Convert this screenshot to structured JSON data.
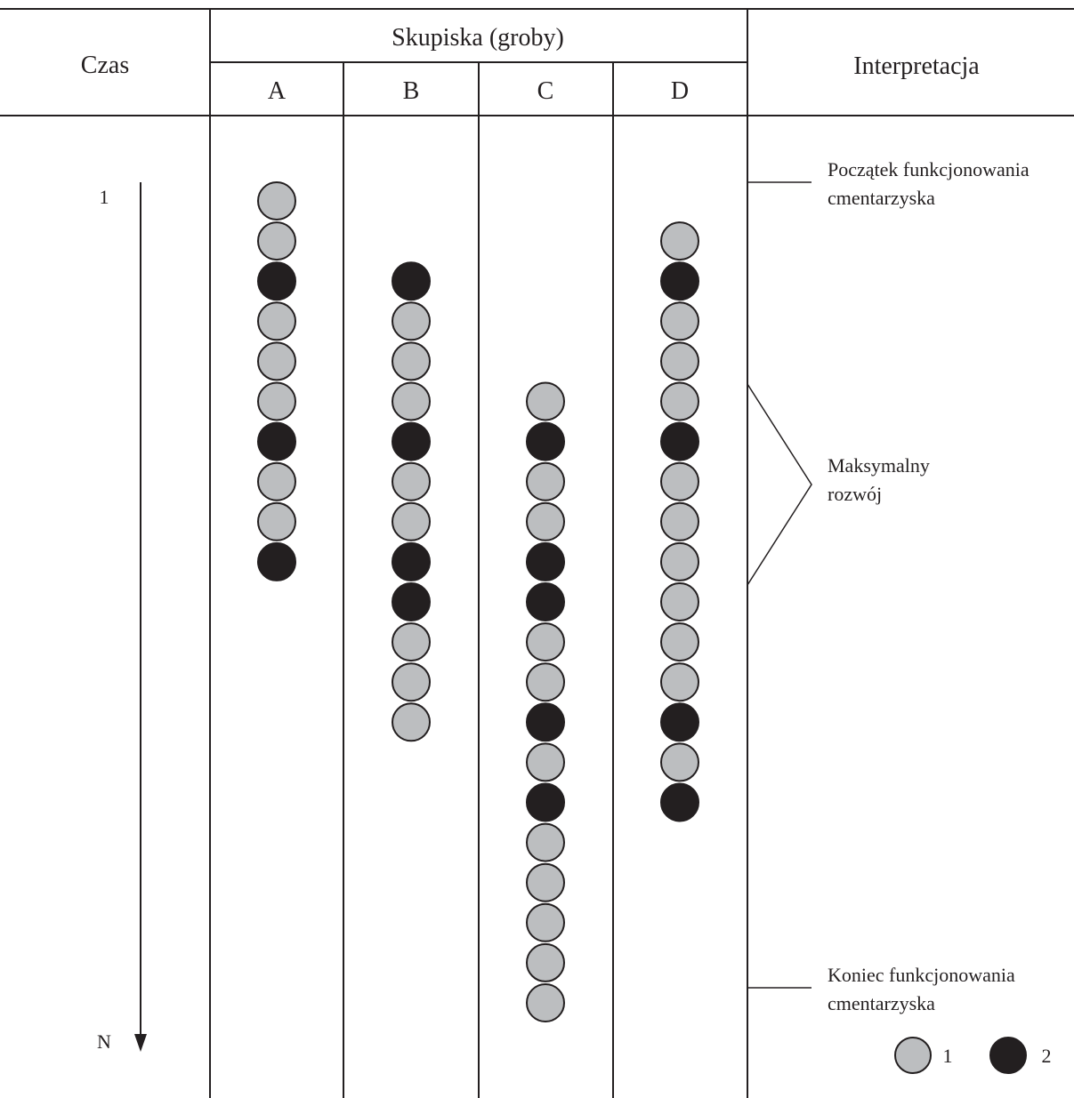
{
  "header": {
    "time_label": "Czas",
    "clusters_label": "Skupiska (groby)",
    "interpretation_label": "Interpretacja"
  },
  "columns": [
    {
      "id": "A",
      "label": "A",
      "start_slot": 0,
      "graves": [
        1,
        1,
        2,
        1,
        1,
        1,
        2,
        1,
        1,
        2
      ]
    },
    {
      "id": "B",
      "label": "B",
      "start_slot": 2,
      "graves": [
        2,
        1,
        1,
        1,
        2,
        1,
        1,
        2,
        2,
        1,
        1,
        1
      ]
    },
    {
      "id": "C",
      "label": "C",
      "start_slot": 5,
      "graves": [
        1,
        2,
        1,
        1,
        2,
        2,
        1,
        1,
        2,
        1,
        2,
        1,
        1,
        1,
        1,
        1
      ]
    },
    {
      "id": "D",
      "label": "D",
      "start_slot": 1,
      "graves": [
        1,
        2,
        1,
        1,
        1,
        2,
        1,
        1,
        1,
        1,
        1,
        1,
        2,
        1,
        2
      ]
    }
  ],
  "time_axis": {
    "start_label": "1",
    "end_label": "N"
  },
  "interpretation": {
    "start": [
      "Początek funkcjonowania",
      "cmentarzyska"
    ],
    "peak": [
      "Maksymalny",
      "rozwój"
    ],
    "end": [
      "Koniec funkcjonowania",
      "cmentarzyska"
    ]
  },
  "legend": [
    {
      "type": 1,
      "label": "1",
      "color": "#bcbec0"
    },
    {
      "type": 2,
      "label": "2",
      "color": "#231f20"
    }
  ],
  "colors": {
    "line": "#231f20",
    "type1_fill": "#bcbec0",
    "type2_fill": "#231f20"
  }
}
